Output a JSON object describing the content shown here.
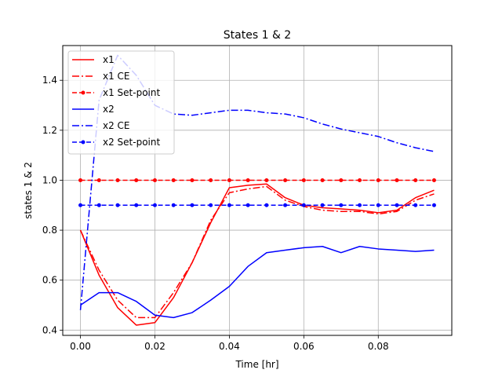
{
  "chart_data": {
    "type": "line",
    "title": "States 1 & 2",
    "xlabel": "Time [hr]",
    "ylabel": "states 1 & 2",
    "xlim": [
      -0.00475,
      0.09975
    ],
    "ylim": [
      0.379,
      1.539
    ],
    "grid": true,
    "legend_position": "top-left",
    "x_ticks": [
      0.0,
      0.02,
      0.04,
      0.06,
      0.08
    ],
    "x_tick_labels": [
      "0.00",
      "0.02",
      "0.04",
      "0.06",
      "0.08"
    ],
    "y_ticks": [
      0.4,
      0.6,
      0.8,
      1.0,
      1.2,
      1.4
    ],
    "y_tick_labels": [
      "0.4",
      "0.6",
      "0.8",
      "1.0",
      "1.2",
      "1.4"
    ],
    "x": [
      0.0,
      0.005,
      0.01,
      0.015,
      0.02,
      0.025,
      0.03,
      0.035,
      0.04,
      0.045,
      0.05,
      0.055,
      0.06,
      0.065,
      0.07,
      0.075,
      0.08,
      0.085,
      0.09,
      0.095
    ],
    "series": [
      {
        "name": "x1",
        "color": "#ff0000",
        "linestyle": "solid",
        "marker": "none",
        "values": [
          0.8,
          0.62,
          0.49,
          0.42,
          0.43,
          0.53,
          0.67,
          0.83,
          0.97,
          0.98,
          0.985,
          0.93,
          0.9,
          0.89,
          0.885,
          0.88,
          0.87,
          0.88,
          0.93,
          0.96
        ]
      },
      {
        "name": "x1 CE",
        "color": "#ff0000",
        "linestyle": "dashdot",
        "marker": "none",
        "values": [
          0.8,
          0.64,
          0.52,
          0.45,
          0.45,
          0.55,
          0.67,
          0.84,
          0.95,
          0.965,
          0.975,
          0.92,
          0.895,
          0.88,
          0.875,
          0.875,
          0.865,
          0.875,
          0.92,
          0.945
        ]
      },
      {
        "name": "x1 Set-point",
        "color": "#ff0000",
        "linestyle": "dashed",
        "marker": "dot",
        "values": [
          1.0,
          1.0,
          1.0,
          1.0,
          1.0,
          1.0,
          1.0,
          1.0,
          1.0,
          1.0,
          1.0,
          1.0,
          1.0,
          1.0,
          1.0,
          1.0,
          1.0,
          1.0,
          1.0,
          1.0
        ]
      },
      {
        "name": "x2",
        "color": "#0000ff",
        "linestyle": "solid",
        "marker": "none",
        "values": [
          0.5,
          0.55,
          0.55,
          0.515,
          0.46,
          0.45,
          0.47,
          0.52,
          0.575,
          0.655,
          0.71,
          0.72,
          0.73,
          0.735,
          0.71,
          0.735,
          0.725,
          0.72,
          0.715,
          0.72
        ]
      },
      {
        "name": "x2 CE",
        "color": "#0000ff",
        "linestyle": "dashdot",
        "marker": "none",
        "values": [
          0.48,
          1.32,
          1.5,
          1.42,
          1.3,
          1.265,
          1.26,
          1.27,
          1.28,
          1.28,
          1.27,
          1.265,
          1.25,
          1.225,
          1.205,
          1.19,
          1.175,
          1.15,
          1.13,
          1.115
        ]
      },
      {
        "name": "x2 Set-point",
        "color": "#0000ff",
        "linestyle": "dashed",
        "marker": "dot",
        "values": [
          0.9,
          0.9,
          0.9,
          0.9,
          0.9,
          0.9,
          0.9,
          0.9,
          0.9,
          0.9,
          0.9,
          0.9,
          0.9,
          0.9,
          0.9,
          0.9,
          0.9,
          0.9,
          0.9,
          0.9
        ]
      }
    ]
  }
}
